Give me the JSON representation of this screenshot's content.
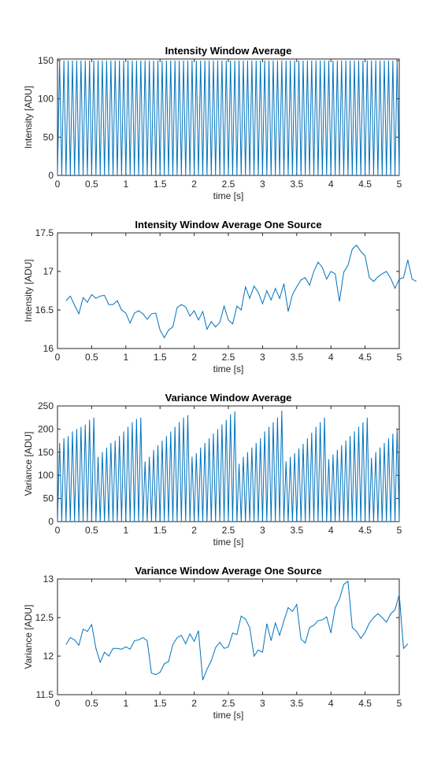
{
  "chart_data": [
    {
      "type": "line",
      "title": "Intensity Window Average",
      "xlabel": "time [s]",
      "ylabel": "Intensity [ADU]",
      "xlim": [
        0,
        5
      ],
      "ylim": [
        0,
        152
      ],
      "xticks": [
        "0",
        "0.5",
        "1",
        "1.5",
        "2",
        "2.5",
        "3",
        "3.5",
        "4",
        "4.5",
        "5"
      ],
      "yticks": [
        "0",
        "50",
        "100",
        "150"
      ],
      "grid": false,
      "color": "#0072BD",
      "series": [
        {
          "pattern": "periodic-spikes",
          "min": 0,
          "max": 150,
          "period_s": 0.0625
        }
      ]
    },
    {
      "type": "line",
      "title": "Intensity Window Average One Source",
      "xlabel": "time [s]",
      "ylabel": "Intensity [ADU]",
      "xlim": [
        0,
        5
      ],
      "ylim": [
        16,
        17.5
      ],
      "xticks": [
        "0",
        "0.5",
        "1",
        "1.5",
        "2",
        "2.5",
        "3",
        "3.5",
        "4",
        "4.5",
        "5"
      ],
      "yticks": [
        "16",
        "16.5",
        "17",
        "17.5"
      ],
      "grid": false,
      "color": "#0072BD",
      "series": [
        {
          "x0": 0.125,
          "dx": 0.0625,
          "values": [
            16.62,
            16.68,
            16.56,
            16.45,
            16.66,
            16.6,
            16.7,
            16.65,
            16.68,
            16.69,
            16.57,
            16.57,
            16.62,
            16.5,
            16.46,
            16.33,
            16.46,
            16.49,
            16.45,
            16.38,
            16.45,
            16.46,
            16.24,
            16.14,
            16.24,
            16.28,
            16.53,
            16.57,
            16.54,
            16.42,
            16.49,
            16.37,
            16.48,
            16.25,
            16.35,
            16.28,
            16.34,
            16.55,
            16.37,
            16.32,
            16.55,
            16.5,
            16.8,
            16.65,
            16.81,
            16.73,
            16.58,
            16.75,
            16.63,
            16.78,
            16.65,
            16.84,
            16.48,
            16.7,
            16.8,
            16.89,
            16.92,
            16.82,
            17.0,
            17.12,
            17.05,
            16.9,
            17.0,
            16.97,
            16.61,
            16.99,
            17.08,
            17.29,
            17.34,
            17.26,
            17.2,
            16.92,
            16.87,
            16.93,
            16.97,
            17.0,
            16.91,
            16.78,
            16.9,
            16.92,
            17.15,
            16.9,
            16.87
          ]
        }
      ]
    },
    {
      "type": "line",
      "title": "Variance Window Average",
      "xlabel": "time [s]",
      "ylabel": "Variance [ADU]",
      "xlim": [
        0,
        5
      ],
      "ylim": [
        0,
        250
      ],
      "xticks": [
        "0",
        "0.5",
        "1",
        "1.5",
        "2",
        "2.5",
        "3",
        "3.5",
        "4",
        "4.5",
        "5"
      ],
      "yticks": [
        "0",
        "50",
        "100",
        "150",
        "200",
        "250"
      ],
      "grid": false,
      "color": "#0072BD",
      "series": [
        {
          "pattern": "periodic-spikes",
          "min": 0,
          "period_s": 0.0625,
          "peaks": [
            170,
            180,
            185,
            195,
            200,
            205,
            210,
            220,
            225,
            140,
            150,
            160,
            170,
            175,
            185,
            195,
            205,
            215,
            222,
            225,
            130,
            140,
            155,
            165,
            175,
            185,
            195,
            205,
            215,
            225,
            230,
            140,
            148,
            160,
            170,
            180,
            190,
            200,
            210,
            220,
            232,
            238,
            125,
            140,
            150,
            160,
            170,
            180,
            195,
            205,
            215,
            225,
            240,
            130,
            140,
            148,
            158,
            168,
            180,
            192,
            205,
            215,
            225,
            135,
            145,
            155,
            165,
            175,
            185,
            195,
            205,
            215,
            225,
            138,
            150,
            160,
            170,
            180,
            190,
            200,
            210,
            220,
            225,
            150
          ]
        }
      ]
    },
    {
      "type": "line",
      "title": "Variance Window Average One Source",
      "xlabel": "time [s]",
      "ylabel": "Variance [ADU]",
      "xlim": [
        0,
        5
      ],
      "ylim": [
        11.5,
        13
      ],
      "xticks": [
        "0",
        "0.5",
        "1",
        "1.5",
        "2",
        "2.5",
        "3",
        "3.5",
        "4",
        "4.5",
        "5"
      ],
      "yticks": [
        "11.5",
        "12",
        "12.5",
        "13"
      ],
      "grid": false,
      "color": "#0072BD",
      "series": [
        {
          "x0": 0.125,
          "dx": 0.0625,
          "values": [
            12.15,
            12.24,
            12.21,
            12.14,
            12.35,
            12.32,
            12.41,
            12.1,
            11.92,
            12.05,
            12.0,
            12.1,
            12.1,
            12.09,
            12.12,
            12.09,
            12.2,
            12.21,
            12.24,
            12.2,
            11.78,
            11.76,
            11.79,
            11.9,
            11.93,
            12.15,
            12.24,
            12.27,
            12.16,
            12.29,
            12.19,
            12.33,
            11.69,
            11.83,
            11.94,
            12.11,
            12.18,
            12.1,
            12.12,
            12.3,
            12.28,
            12.52,
            12.48,
            12.37,
            12.0,
            12.08,
            12.05,
            12.42,
            12.2,
            12.43,
            12.27,
            12.46,
            12.63,
            12.58,
            12.67,
            12.22,
            12.17,
            12.37,
            12.4,
            12.46,
            12.47,
            12.51,
            12.3,
            12.63,
            12.74,
            12.93,
            12.97,
            12.37,
            12.32,
            12.23,
            12.31,
            12.43,
            12.5,
            12.55,
            12.5,
            12.44,
            12.55,
            12.6,
            12.8,
            12.1,
            12.16
          ]
        }
      ]
    }
  ]
}
